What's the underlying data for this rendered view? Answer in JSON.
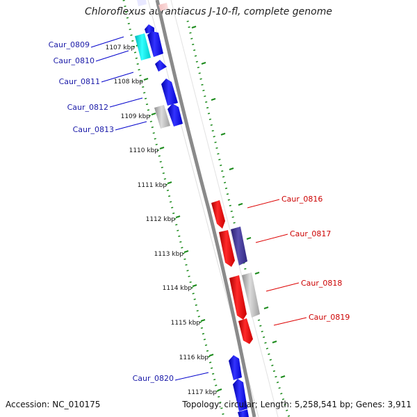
{
  "title": "Chloroflexus aurantiacus J-10-fl, complete genome",
  "footer": {
    "accession": "Accession: NC_010175",
    "stats": "Topology: circular; Length: 5,258,541 bp; Genes: 3,911"
  },
  "ticks": [
    "1107 kbp",
    "1108 kbp",
    "1109 kbp",
    "1110 kbp",
    "1111 kbp",
    "1112 kbp",
    "1113 kbp",
    "1114 kbp",
    "1115 kbp",
    "1116 kbp",
    "1117 kbp"
  ],
  "genes_left": [
    {
      "label": "Caur_0809",
      "color": "#1a1aa8"
    },
    {
      "label": "Caur_0810",
      "color": "#1a1aa8"
    },
    {
      "label": "Caur_0811",
      "color": "#1a1aa8"
    },
    {
      "label": "Caur_0812",
      "color": "#1a1aa8"
    },
    {
      "label": "Caur_0813",
      "color": "#1a1aa8"
    },
    {
      "label": "Caur_0820",
      "color": "#1a1aa8"
    }
  ],
  "genes_right": [
    {
      "label": "Caur_0816",
      "color": "#cc0000"
    },
    {
      "label": "Caur_0817",
      "color": "#cc0000"
    },
    {
      "label": "Caur_0818",
      "color": "#cc0000"
    },
    {
      "label": "Caur_0819",
      "color": "#cc0000"
    }
  ],
  "colors": {
    "backbone": "#8a8a8a",
    "tick": "#1a8a1a",
    "forward_gene": "#0000ee",
    "reverse_gene": "#ee0000",
    "rna_gene": "#00e5e5",
    "pseudo_gene": "#b0b0b0",
    "other_gene": "#3a2f8a"
  }
}
